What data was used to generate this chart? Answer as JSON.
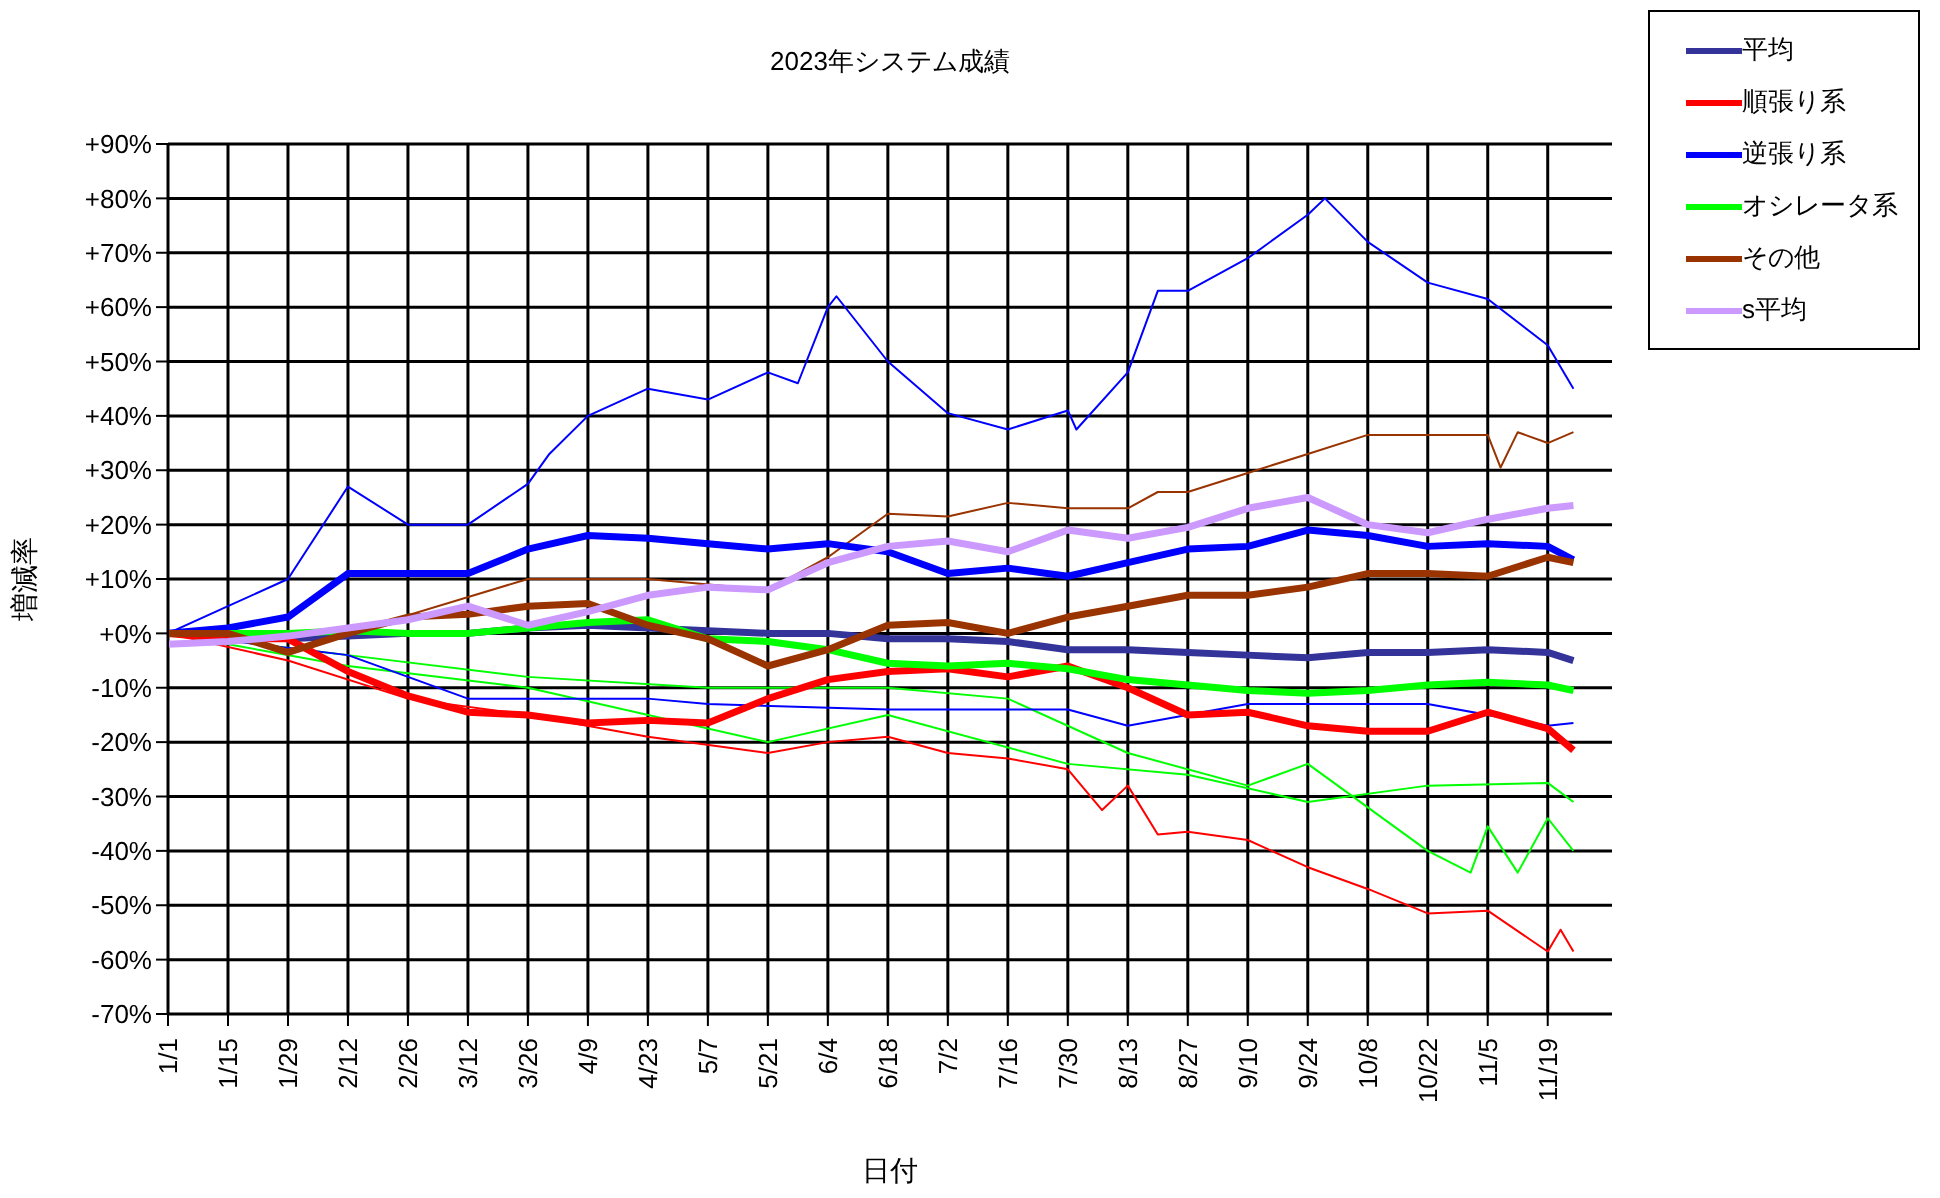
{
  "chart_data": {
    "type": "line",
    "title": "2023年システム成績",
    "xlabel": "日付",
    "ylabel": "増減率",
    "x": [
      "2023-01-01",
      "2023-01-15",
      "2023-01-29",
      "2023-02-12",
      "2023-02-26",
      "2023-03-12",
      "2023-03-26",
      "2023-04-09",
      "2023-04-23",
      "2023-05-07",
      "2023-05-21",
      "2023-06-04",
      "2023-06-18",
      "2023-07-02",
      "2023-07-16",
      "2023-07-30",
      "2023-08-13",
      "2023-08-27",
      "2023-09-10",
      "2023-09-24",
      "2023-10-08",
      "2023-10-22",
      "2023-11-05",
      "2023-11-19",
      "2023-11-25"
    ],
    "series": [
      {
        "color": "#0000ff",
        "x": [
          "2023-01-01",
          "2023-01-15",
          "2023-01-29",
          "2023-02-12",
          "2023-02-26",
          "2023-03-12",
          "2023-03-26",
          "2023-03-31",
          "2023-04-09",
          "2023-04-23",
          "2023-05-07",
          "2023-05-21",
          "2023-05-28",
          "2023-06-04",
          "2023-06-06",
          "2023-06-18",
          "2023-07-02",
          "2023-07-16",
          "2023-07-30",
          "2023-08-01",
          "2023-08-13",
          "2023-08-20",
          "2023-08-27",
          "2023-09-10",
          "2023-09-24",
          "2023-09-28",
          "2023-10-08",
          "2023-10-22",
          "2023-11-05",
          "2023-11-19",
          "2023-11-25"
        ],
        "values": [
          0,
          5,
          10,
          27,
          20,
          20,
          27.5,
          33,
          40,
          45,
          43,
          48,
          46,
          60,
          62,
          50,
          40.5,
          37.5,
          41,
          37.5,
          48,
          63,
          63,
          69,
          77,
          80,
          72,
          64.5,
          61.5,
          53,
          45
        ]
      },
      {
        "color": "#ff0000",
        "x": [
          "2023-01-01",
          "2023-01-29",
          "2023-02-26",
          "2023-03-26",
          "2023-04-23",
          "2023-05-21",
          "2023-06-04",
          "2023-06-18",
          "2023-07-02",
          "2023-07-16",
          "2023-07-30",
          "2023-08-07",
          "2023-08-13",
          "2023-08-20",
          "2023-08-27",
          "2023-09-10",
          "2023-09-24",
          "2023-10-08",
          "2023-10-22",
          "2023-11-05",
          "2023-11-19",
          "2023-11-22",
          "2023-11-25"
        ],
        "values": [
          0,
          -5,
          -12,
          -15,
          -19,
          -22,
          -20,
          -19,
          -22,
          -23,
          -25,
          -32.5,
          -28,
          -37,
          -36.5,
          -38,
          -43,
          -47,
          -51.5,
          -51,
          -58.5,
          -54.5,
          -58.5
        ]
      },
      {
        "color": "#993300",
        "x": [
          "2023-01-01",
          "2023-02-12",
          "2023-03-26",
          "2023-04-23",
          "2023-05-21",
          "2023-06-04",
          "2023-06-18",
          "2023-07-02",
          "2023-07-16",
          "2023-07-30",
          "2023-08-13",
          "2023-08-20",
          "2023-08-27",
          "2023-09-10",
          "2023-09-24",
          "2023-10-08",
          "2023-10-22",
          "2023-11-05",
          "2023-11-08",
          "2023-11-12",
          "2023-11-19",
          "2023-11-25"
        ],
        "values": [
          0,
          0,
          10,
          10,
          8,
          14,
          22,
          21.5,
          24,
          23,
          23,
          26,
          26,
          29.5,
          33,
          36.5,
          36.5,
          36.5,
          30.5,
          37,
          35,
          37
        ]
      },
      {
        "color": "#00ff00",
        "x": [
          "2023-01-01",
          "2023-02-12",
          "2023-03-26",
          "2023-05-07",
          "2023-06-18",
          "2023-07-16",
          "2023-08-13",
          "2023-09-10",
          "2023-09-24",
          "2023-10-08",
          "2023-10-22",
          "2023-11-01",
          "2023-11-05",
          "2023-11-12",
          "2023-11-19",
          "2023-11-25"
        ],
        "values": [
          0,
          -4,
          -8,
          -10,
          -10,
          -12,
          -22,
          -28,
          -24,
          -32,
          -40,
          -44,
          -35.5,
          -44,
          -34,
          -40
        ]
      },
      {
        "color": "#00ff00",
        "x": [
          "2023-01-01",
          "2023-02-12",
          "2023-03-26",
          "2023-05-21",
          "2023-06-18",
          "2023-07-30",
          "2023-08-27",
          "2023-09-24",
          "2023-10-22",
          "2023-11-19",
          "2023-11-25"
        ],
        "values": [
          0,
          -6,
          -10,
          -20,
          -15,
          -24,
          -26,
          -31,
          -28,
          -27.5,
          -31
        ]
      },
      {
        "color": "#0000ff",
        "x": [
          "2023-01-01",
          "2023-02-12",
          "2023-03-12",
          "2023-04-23",
          "2023-05-07",
          "2023-06-18",
          "2023-07-30",
          "2023-08-13",
          "2023-09-10",
          "2023-10-22",
          "2023-11-19",
          "2023-11-25"
        ],
        "values": [
          0,
          -4,
          -12,
          -12,
          -13,
          -14,
          -14,
          -17,
          -13,
          -13,
          -17,
          -16.5
        ]
      },
      {
        "name": "平均",
        "color": "#333399",
        "values": [
          0,
          0,
          -1,
          -0.5,
          0,
          0,
          1,
          1.5,
          1,
          0.5,
          0,
          0,
          -1,
          -1,
          -1.5,
          -3,
          -3,
          -3.5,
          -4,
          -4.5,
          -3.5,
          -3.5,
          -3,
          -3.5,
          -5
        ]
      },
      {
        "name": "順張り系",
        "color": "#ff0000",
        "values": [
          0,
          -1,
          -1,
          -7,
          -11.5,
          -14.5,
          -15,
          -16.5,
          -16,
          -16.5,
          -12,
          -8.5,
          -7,
          -6.5,
          -8,
          -6,
          -10,
          -15,
          -14.5,
          -17,
          -18,
          -18,
          -14.5,
          -17.5,
          -21.5
        ]
      },
      {
        "name": "逆張り系",
        "color": "#0000ff",
        "values": [
          0,
          1,
          3,
          11,
          11,
          11,
          15.5,
          18,
          17.5,
          16.5,
          15.5,
          16.5,
          15,
          11,
          12,
          10.5,
          13,
          15.5,
          16,
          19,
          18,
          16,
          16.5,
          16,
          13.5
        ]
      },
      {
        "name": "オシレータ系",
        "color": "#00ff00",
        "values": [
          0,
          0,
          0,
          0.5,
          0,
          0,
          1,
          2,
          2.5,
          -1,
          -1.5,
          -3,
          -5.5,
          -6,
          -5.5,
          -6.5,
          -8.5,
          -9.5,
          -10.5,
          -11,
          -10.5,
          -9.5,
          -9,
          -9.5,
          -10.5
        ]
      },
      {
        "name": "その他",
        "color": "#993300",
        "values": [
          0,
          0,
          -3.5,
          0,
          3,
          3.5,
          5,
          5.5,
          1.5,
          -1,
          -6,
          -3,
          1.5,
          2,
          0,
          3,
          5,
          7,
          7,
          8.5,
          11,
          11,
          10.5,
          14,
          13
        ]
      },
      {
        "name": "s平均",
        "color": "#cc99ff",
        "values": [
          -2,
          -1.5,
          -0.5,
          1,
          2.5,
          5,
          1.5,
          4,
          7,
          8.5,
          8,
          13,
          16,
          17,
          15,
          19,
          17.5,
          19.5,
          23,
          25,
          20,
          18.5,
          21,
          23,
          23.5
        ]
      }
    ],
    "xlim": [
      "2023-01-01",
      "2023-12-04"
    ],
    "xticks": [
      {
        "value": "2023-01-01",
        "label": "1/1"
      },
      {
        "value": "2023-01-15",
        "label": "1/15"
      },
      {
        "value": "2023-01-29",
        "label": "1/29"
      },
      {
        "value": "2023-02-12",
        "label": "2/12"
      },
      {
        "value": "2023-02-26",
        "label": "2/26"
      },
      {
        "value": "2023-03-12",
        "label": "3/12"
      },
      {
        "value": "2023-03-26",
        "label": "3/26"
      },
      {
        "value": "2023-04-09",
        "label": "4/9"
      },
      {
        "value": "2023-04-23",
        "label": "4/23"
      },
      {
        "value": "2023-05-07",
        "label": "5/7"
      },
      {
        "value": "2023-05-21",
        "label": "5/21"
      },
      {
        "value": "2023-06-04",
        "label": "6/4"
      },
      {
        "value": "2023-06-18",
        "label": "6/18"
      },
      {
        "value": "2023-07-02",
        "label": "7/2"
      },
      {
        "value": "2023-07-16",
        "label": "7/16"
      },
      {
        "value": "2023-07-30",
        "label": "7/30"
      },
      {
        "value": "2023-08-13",
        "label": "8/13"
      },
      {
        "value": "2023-08-27",
        "label": "8/27"
      },
      {
        "value": "2023-09-10",
        "label": "9/10"
      },
      {
        "value": "2023-09-24",
        "label": "9/24"
      },
      {
        "value": "2023-10-08",
        "label": "10/8"
      },
      {
        "value": "2023-10-22",
        "label": "10/22"
      },
      {
        "value": "2023-11-05",
        "label": "11/5"
      },
      {
        "value": "2023-11-19",
        "label": "11/19"
      }
    ],
    "ylim": [
      -70,
      90
    ],
    "yticks": [
      {
        "value": -70,
        "label": "-70%"
      },
      {
        "value": -60,
        "label": "-60%"
      },
      {
        "value": -50,
        "label": "-50%"
      },
      {
        "value": -40,
        "label": "-40%"
      },
      {
        "value": -30,
        "label": "-30%"
      },
      {
        "value": -20,
        "label": "-20%"
      },
      {
        "value": -10,
        "label": "-10%"
      },
      {
        "value": 0,
        "label": "+0%"
      },
      {
        "value": 10,
        "label": "+10%"
      },
      {
        "value": 20,
        "label": "+20%"
      },
      {
        "value": 30,
        "label": "+30%"
      },
      {
        "value": 40,
        "label": "+40%"
      },
      {
        "value": 50,
        "label": "+50%"
      },
      {
        "value": 60,
        "label": "+60%"
      },
      {
        "value": 70,
        "label": "+70%"
      },
      {
        "value": 80,
        "label": "+80%"
      },
      {
        "value": 90,
        "label": "+90%"
      }
    ],
    "grid": true,
    "legend": "top right",
    "marker": "none",
    "line_style": "solid"
  }
}
